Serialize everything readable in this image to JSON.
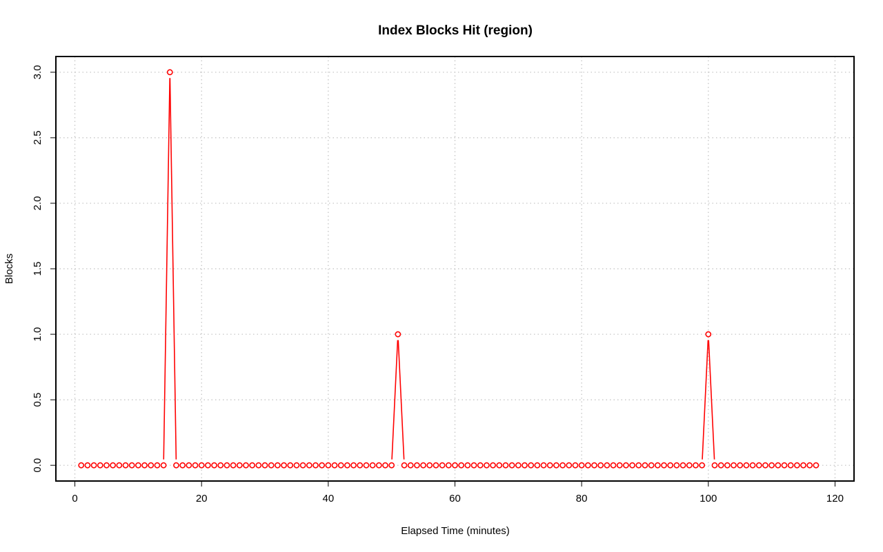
{
  "chart_data": {
    "type": "line",
    "title": "Index Blocks Hit (region)",
    "xlabel": "Elapsed Time (minutes)",
    "ylabel": "Blocks",
    "xlim": [
      -3,
      123
    ],
    "ylim": [
      -0.12,
      3.12
    ],
    "x_ticks": [
      0,
      20,
      40,
      60,
      80,
      100,
      120
    ],
    "x_tick_labels": [
      "0",
      "20",
      "40",
      "60",
      "80",
      "100",
      "120"
    ],
    "y_ticks": [
      0,
      0.5,
      1,
      1.5,
      2,
      2.5,
      3
    ],
    "y_tick_labels": [
      "0.0",
      "0.5",
      "1.0",
      "1.5",
      "2.0",
      "2.5",
      "3.0"
    ],
    "grid": true,
    "series_color": "#ff0000",
    "marker": "open-circle",
    "x_start": 1,
    "values": [
      0,
      0,
      0,
      0,
      0,
      0,
      0,
      0,
      0,
      0,
      0,
      0,
      0,
      0,
      3,
      0,
      0,
      0,
      0,
      0,
      0,
      0,
      0,
      0,
      0,
      0,
      0,
      0,
      0,
      0,
      0,
      0,
      0,
      0,
      0,
      0,
      0,
      0,
      0,
      0,
      0,
      0,
      0,
      0,
      0,
      0,
      0,
      0,
      0,
      0,
      1,
      0,
      0,
      0,
      0,
      0,
      0,
      0,
      0,
      0,
      0,
      0,
      0,
      0,
      0,
      0,
      0,
      0,
      0,
      0,
      0,
      0,
      0,
      0,
      0,
      0,
      0,
      0,
      0,
      0,
      0,
      0,
      0,
      0,
      0,
      0,
      0,
      0,
      0,
      0,
      0,
      0,
      0,
      0,
      0,
      0,
      0,
      0,
      0,
      1,
      0,
      0,
      0,
      0,
      0,
      0,
      0,
      0,
      0,
      0,
      0,
      0,
      0,
      0,
      0,
      0,
      0
    ]
  }
}
